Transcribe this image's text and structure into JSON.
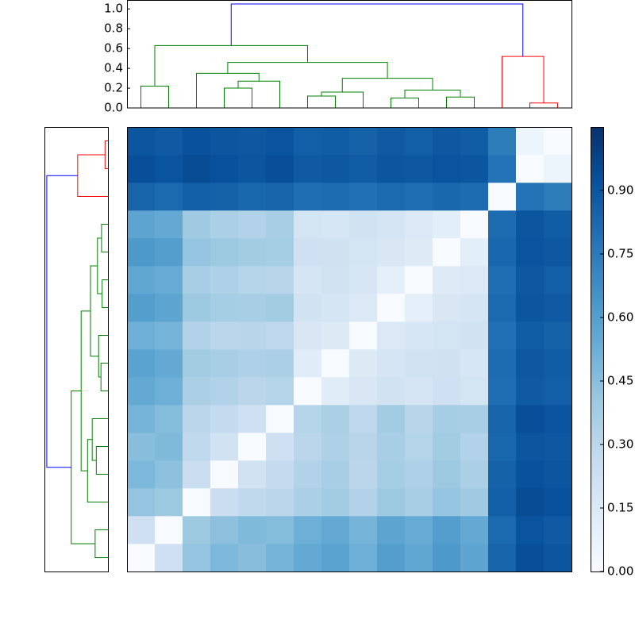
{
  "chart_data": {
    "type": "heatmap",
    "cmap": "Blues",
    "matrix": [
      [
        0,
        0.22,
        0.42,
        0.48,
        0.45,
        0.5,
        0.55,
        0.58,
        0.52,
        0.6,
        0.56,
        0.62,
        0.57,
        0.84,
        0.93,
        0.9
      ],
      [
        0.22,
        0,
        0.4,
        0.44,
        0.47,
        0.46,
        0.52,
        0.55,
        0.5,
        0.57,
        0.54,
        0.6,
        0.55,
        0.82,
        0.91,
        0.88
      ],
      [
        0.42,
        0.4,
        0,
        0.24,
        0.28,
        0.3,
        0.35,
        0.38,
        0.33,
        0.4,
        0.36,
        0.42,
        0.39,
        0.86,
        0.94,
        0.92
      ],
      [
        0.48,
        0.44,
        0.24,
        0,
        0.2,
        0.27,
        0.33,
        0.36,
        0.3,
        0.37,
        0.34,
        0.4,
        0.35,
        0.85,
        0.92,
        0.9
      ],
      [
        0.45,
        0.47,
        0.28,
        0.2,
        0,
        0.22,
        0.3,
        0.34,
        0.31,
        0.36,
        0.32,
        0.38,
        0.33,
        0.83,
        0.9,
        0.89
      ],
      [
        0.5,
        0.46,
        0.3,
        0.27,
        0.22,
        0,
        0.32,
        0.35,
        0.29,
        0.38,
        0.31,
        0.37,
        0.36,
        0.84,
        0.93,
        0.91
      ],
      [
        0.55,
        0.52,
        0.35,
        0.33,
        0.3,
        0.32,
        0,
        0.12,
        0.16,
        0.2,
        0.18,
        0.22,
        0.19,
        0.8,
        0.88,
        0.86
      ],
      [
        0.58,
        0.55,
        0.38,
        0.36,
        0.34,
        0.35,
        0.12,
        0,
        0.14,
        0.18,
        0.2,
        0.21,
        0.17,
        0.81,
        0.89,
        0.87
      ],
      [
        0.52,
        0.5,
        0.33,
        0.3,
        0.31,
        0.29,
        0.16,
        0.14,
        0,
        0.15,
        0.17,
        0.19,
        0.2,
        0.79,
        0.87,
        0.85
      ],
      [
        0.6,
        0.57,
        0.4,
        0.37,
        0.36,
        0.38,
        0.2,
        0.18,
        0.15,
        0,
        0.1,
        0.16,
        0.18,
        0.82,
        0.9,
        0.88
      ],
      [
        0.56,
        0.54,
        0.36,
        0.34,
        0.32,
        0.31,
        0.18,
        0.2,
        0.17,
        0.1,
        0,
        0.13,
        0.15,
        0.8,
        0.89,
        0.86
      ],
      [
        0.62,
        0.6,
        0.42,
        0.4,
        0.38,
        0.37,
        0.22,
        0.21,
        0.19,
        0.16,
        0.13,
        0,
        0.11,
        0.83,
        0.91,
        0.89
      ],
      [
        0.57,
        0.55,
        0.39,
        0.35,
        0.33,
        0.36,
        0.19,
        0.17,
        0.2,
        0.18,
        0.15,
        0.11,
        0,
        0.81,
        0.9,
        0.87
      ],
      [
        0.84,
        0.82,
        0.86,
        0.85,
        0.83,
        0.84,
        0.8,
        0.81,
        0.79,
        0.82,
        0.8,
        0.83,
        0.81,
        0,
        0.78,
        0.74
      ],
      [
        0.93,
        0.91,
        0.94,
        0.92,
        0.9,
        0.93,
        0.88,
        0.89,
        0.87,
        0.9,
        0.89,
        0.91,
        0.9,
        0.78,
        0,
        0.05
      ],
      [
        0.9,
        0.88,
        0.92,
        0.9,
        0.89,
        0.91,
        0.86,
        0.87,
        0.85,
        0.88,
        0.86,
        0.89,
        0.87,
        0.74,
        0.05,
        0
      ]
    ],
    "linkage": [
      {
        "left": 14,
        "right": 15,
        "height": 0.05,
        "color": "#ff0000"
      },
      {
        "left": 9,
        "right": 10,
        "height": 0.1,
        "color": "#008000"
      },
      {
        "left": 11,
        "right": 12,
        "height": 0.11,
        "color": "#008000"
      },
      {
        "left": 6,
        "right": 7,
        "height": 0.12,
        "color": "#008000"
      },
      {
        "left": 19,
        "right": 8,
        "height": 0.16,
        "color": "#008000"
      },
      {
        "left": 17,
        "right": 18,
        "height": 0.18,
        "color": "#008000"
      },
      {
        "left": 3,
        "right": 4,
        "height": 0.2,
        "color": "#008000"
      },
      {
        "left": 0,
        "right": 1,
        "height": 0.22,
        "color": "#008000"
      },
      {
        "left": 22,
        "right": 5,
        "height": 0.27,
        "color": "#008000"
      },
      {
        "left": 20,
        "right": 21,
        "height": 0.3,
        "color": "#008000"
      },
      {
        "left": 2,
        "right": 24,
        "height": 0.35,
        "color": "#008000"
      },
      {
        "left": 26,
        "right": 25,
        "height": 0.46,
        "color": "#008000"
      },
      {
        "left": 13,
        "right": 16,
        "height": 0.52,
        "color": "#ff0000"
      },
      {
        "left": 23,
        "right": 27,
        "height": 0.63,
        "color": "#008000"
      },
      {
        "left": 29,
        "right": 28,
        "height": 1.05,
        "color": "#0000ff"
      }
    ],
    "ylim": [
      0,
      1.09
    ],
    "yticks": [
      {
        "value": 0,
        "label": "0.0"
      },
      {
        "value": 0.2,
        "label": "0.2"
      },
      {
        "value": 0.4,
        "label": "0.4"
      },
      {
        "value": 0.6,
        "label": "0.6"
      },
      {
        "value": 0.8,
        "label": "0.8"
      },
      {
        "value": 1.0,
        "label": "1.0"
      }
    ],
    "clim": [
      0,
      1.05
    ],
    "cticks": [
      {
        "value": 0,
        "label": "0.00"
      },
      {
        "value": 0.15,
        "label": "0.15"
      },
      {
        "value": 0.3,
        "label": "0.30"
      },
      {
        "value": 0.45,
        "label": "0.45"
      },
      {
        "value": 0.6,
        "label": "0.60"
      },
      {
        "value": 0.75,
        "label": "0.75"
      },
      {
        "value": 0.9,
        "label": "0.90"
      }
    ]
  }
}
